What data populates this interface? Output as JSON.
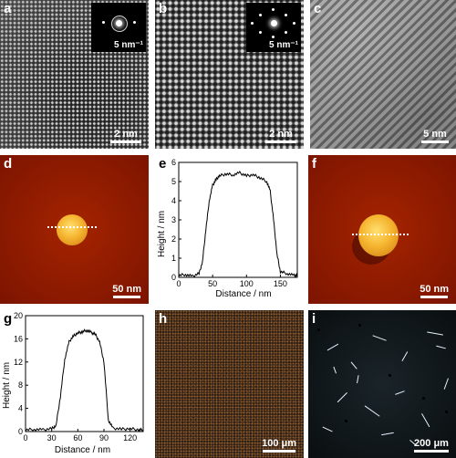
{
  "panels": {
    "a": {
      "letter": "a",
      "scale_bar": "2 nm",
      "inset_scale": "5 nm⁻¹"
    },
    "b": {
      "letter": "b",
      "scale_bar": "2 nm",
      "inset_scale": "5 nm⁻¹"
    },
    "c": {
      "letter": "c",
      "scale_bar": "5 nm"
    },
    "d": {
      "letter": "d",
      "scale_bar": "50 nm"
    },
    "e": {
      "letter": "e"
    },
    "f": {
      "letter": "f",
      "scale_bar": "50 nm"
    },
    "g": {
      "letter": "g"
    },
    "h": {
      "letter": "h",
      "scale_bar": "100 μm"
    },
    "i": {
      "letter": "i",
      "scale_bar": "200 μm"
    }
  },
  "colors": {
    "afm_background": "#8e1a00",
    "afm_particle": "#f5b530",
    "plot_line": "#000000"
  },
  "chart_data": [
    {
      "type": "line",
      "panel": "e",
      "xlabel": "Distance / nm",
      "ylabel": "Height / nm",
      "xlim": [
        0,
        175
      ],
      "ylim": [
        0,
        6
      ],
      "xticks": [
        0,
        50,
        100,
        150
      ],
      "yticks": [
        0,
        1,
        2,
        3,
        4,
        5,
        6
      ],
      "x": [
        0,
        10,
        20,
        30,
        35,
        40,
        45,
        50,
        55,
        60,
        70,
        80,
        90,
        100,
        110,
        120,
        130,
        135,
        140,
        145,
        150,
        160,
        170,
        175
      ],
      "y": [
        0.1,
        0.15,
        0.05,
        0.2,
        0.8,
        2.5,
        4.0,
        4.8,
        5.1,
        5.3,
        5.4,
        5.35,
        5.45,
        5.3,
        5.35,
        5.2,
        5.0,
        4.5,
        3.0,
        1.2,
        0.3,
        0.2,
        0.1,
        0.1
      ]
    },
    {
      "type": "line",
      "panel": "g",
      "xlabel": "Distance / nm",
      "ylabel": "Height / nm",
      "xlim": [
        0,
        135
      ],
      "ylim": [
        0,
        20
      ],
      "xticks": [
        0,
        30,
        60,
        90,
        120
      ],
      "yticks": [
        0,
        4,
        8,
        12,
        16,
        20
      ],
      "x": [
        0,
        10,
        20,
        30,
        35,
        40,
        45,
        50,
        55,
        60,
        65,
        70,
        75,
        80,
        85,
        90,
        95,
        100,
        110,
        120,
        130,
        135
      ],
      "y": [
        0.3,
        0.4,
        0.3,
        0.5,
        1.0,
        6.0,
        12.5,
        15.5,
        16.5,
        17.0,
        17.2,
        17.5,
        17.1,
        16.8,
        15.5,
        12.0,
        2.0,
        0.6,
        0.4,
        0.5,
        0.3,
        0.3
      ]
    }
  ]
}
